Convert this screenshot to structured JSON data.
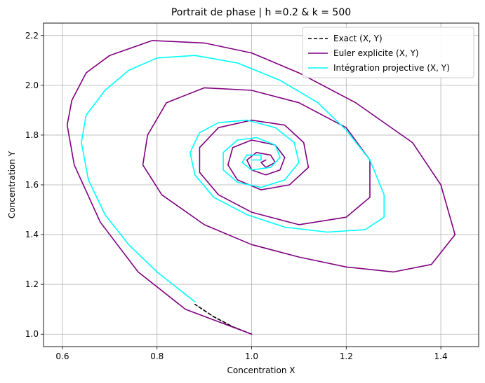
{
  "chart_data": {
    "type": "line",
    "title": "Portrait de phase | h =0.2 & k = 500",
    "xlabel": "Concentration X",
    "ylabel": "Concentration Y",
    "xlim": [
      0.56,
      1.48
    ],
    "ylim": [
      0.95,
      2.25
    ],
    "xticks": [
      0.6,
      0.8,
      1.0,
      1.2,
      1.4
    ],
    "xtick_labels": [
      "0.6",
      "0.8",
      "1.0",
      "1.2",
      "1.4"
    ],
    "yticks": [
      1.0,
      1.2,
      1.4,
      1.6,
      1.8,
      2.0,
      2.2
    ],
    "ytick_labels": [
      "1.0",
      "1.2",
      "1.4",
      "1.6",
      "1.8",
      "2.0",
      "2.2"
    ],
    "grid": true,
    "legend_position": "top-right",
    "series": [
      {
        "name": "Exact (X, Y)",
        "color": "#000000",
        "style": "dashed",
        "points": [
          [
            1.0,
            1.0
          ],
          [
            0.96,
            1.03
          ],
          [
            0.92,
            1.07
          ],
          [
            0.88,
            1.12
          ]
        ]
      },
      {
        "name": "Euler explicite (X, Y)",
        "color": "#800080",
        "style": "solid",
        "spiral": {
          "start": [
            1.0,
            1.0
          ],
          "center": [
            1.03,
            1.7
          ],
          "approx_loops": 7
        },
        "points": [
          [
            1.0,
            1.0
          ],
          [
            0.86,
            1.1
          ],
          [
            0.76,
            1.25
          ],
          [
            0.68,
            1.45
          ],
          [
            0.625,
            1.68
          ],
          [
            0.61,
            1.84
          ],
          [
            0.62,
            1.94
          ],
          [
            0.65,
            2.05
          ],
          [
            0.7,
            2.12
          ],
          [
            0.79,
            2.18
          ],
          [
            0.9,
            2.17
          ],
          [
            1.0,
            2.13
          ],
          [
            1.1,
            2.05
          ],
          [
            1.22,
            1.93
          ],
          [
            1.34,
            1.77
          ],
          [
            1.4,
            1.6
          ],
          [
            1.43,
            1.4
          ],
          [
            1.38,
            1.28
          ],
          [
            1.3,
            1.25
          ],
          [
            1.2,
            1.27
          ],
          [
            1.1,
            1.31
          ],
          [
            1.0,
            1.36
          ],
          [
            0.9,
            1.44
          ],
          [
            0.81,
            1.56
          ],
          [
            0.77,
            1.68
          ],
          [
            0.78,
            1.8
          ],
          [
            0.82,
            1.93
          ],
          [
            0.9,
            1.99
          ],
          [
            1.0,
            1.98
          ],
          [
            1.1,
            1.93
          ],
          [
            1.2,
            1.83
          ],
          [
            1.25,
            1.7
          ],
          [
            1.25,
            1.55
          ],
          [
            1.2,
            1.47
          ],
          [
            1.1,
            1.44
          ],
          [
            1.0,
            1.49
          ],
          [
            0.93,
            1.56
          ],
          [
            0.89,
            1.65
          ],
          [
            0.89,
            1.75
          ],
          [
            0.93,
            1.83
          ],
          [
            1.0,
            1.86
          ],
          [
            1.07,
            1.84
          ],
          [
            1.11,
            1.77
          ],
          [
            1.12,
            1.67
          ],
          [
            1.08,
            1.6
          ],
          [
            1.02,
            1.58
          ],
          [
            0.97,
            1.62
          ],
          [
            0.95,
            1.68
          ],
          [
            0.96,
            1.75
          ],
          [
            1.0,
            1.78
          ],
          [
            1.05,
            1.76
          ],
          [
            1.07,
            1.71
          ],
          [
            1.06,
            1.66
          ],
          [
            1.03,
            1.64
          ],
          [
            1.0,
            1.66
          ],
          [
            0.99,
            1.7
          ],
          [
            1.01,
            1.73
          ],
          [
            1.04,
            1.72
          ],
          [
            1.05,
            1.69
          ],
          [
            1.03,
            1.67
          ],
          [
            1.02,
            1.69
          ],
          [
            1.03,
            1.7
          ]
        ]
      },
      {
        "name": "Intégration projective (X, Y)",
        "color": "#00ffff",
        "style": "solid",
        "spiral": {
          "start": [
            0.88,
            1.13
          ],
          "center": [
            1.0,
            1.7
          ],
          "approx_loops": 4
        },
        "points": [
          [
            0.88,
            1.13
          ],
          [
            0.8,
            1.25
          ],
          [
            0.74,
            1.36
          ],
          [
            0.69,
            1.48
          ],
          [
            0.655,
            1.62
          ],
          [
            0.64,
            1.77
          ],
          [
            0.65,
            1.88
          ],
          [
            0.69,
            1.98
          ],
          [
            0.74,
            2.06
          ],
          [
            0.8,
            2.11
          ],
          [
            0.88,
            2.12
          ],
          [
            0.97,
            2.09
          ],
          [
            1.06,
            2.02
          ],
          [
            1.14,
            1.93
          ],
          [
            1.2,
            1.82
          ],
          [
            1.25,
            1.7
          ],
          [
            1.28,
            1.56
          ],
          [
            1.28,
            1.47
          ],
          [
            1.24,
            1.42
          ],
          [
            1.16,
            1.41
          ],
          [
            1.07,
            1.43
          ],
          [
            0.99,
            1.48
          ],
          [
            0.92,
            1.55
          ],
          [
            0.88,
            1.64
          ],
          [
            0.87,
            1.73
          ],
          [
            0.89,
            1.81
          ],
          [
            0.93,
            1.85
          ],
          [
            0.99,
            1.86
          ],
          [
            1.05,
            1.83
          ],
          [
            1.09,
            1.77
          ],
          [
            1.1,
            1.69
          ],
          [
            1.07,
            1.62
          ],
          [
            1.02,
            1.59
          ],
          [
            0.97,
            1.61
          ],
          [
            0.94,
            1.66
          ],
          [
            0.94,
            1.73
          ],
          [
            0.97,
            1.78
          ],
          [
            1.01,
            1.79
          ],
          [
            1.05,
            1.76
          ],
          [
            1.06,
            1.71
          ],
          [
            1.04,
            1.67
          ],
          [
            1.0,
            1.66
          ],
          [
            0.98,
            1.69
          ],
          [
            0.99,
            1.72
          ],
          [
            1.02,
            1.72
          ],
          [
            1.02,
            1.7
          ],
          [
            1.0,
            1.7
          ]
        ]
      }
    ]
  }
}
